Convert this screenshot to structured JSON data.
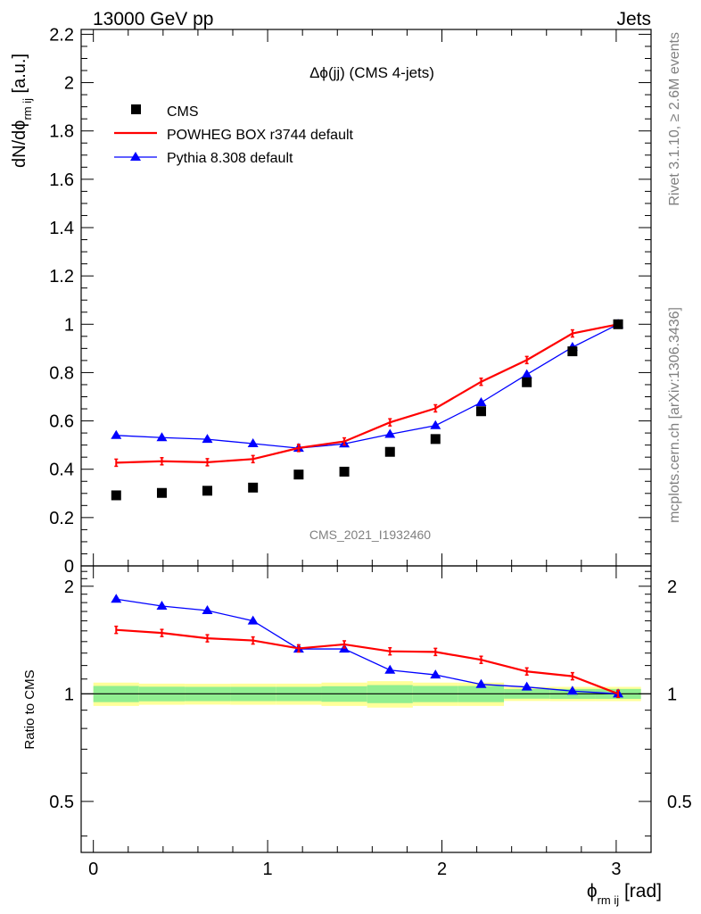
{
  "header": {
    "left": "13000 GeV pp",
    "right": "Jets"
  },
  "side": {
    "rivet": "Rivet 3.1.10, ≥ 2.6M events",
    "mcplots": "mcplots.cern.ch [arXiv:1306.3436]"
  },
  "chart_data": [
    {
      "type": "scatter",
      "title": "Δϕ(jj) (CMS 4-jets)",
      "ylabel_main": "dN/dϕ",
      "ylabel_sub": "rm ij",
      "ylabel_unit": " [a.u.]",
      "xlim": [
        -0.07,
        3.2
      ],
      "ylim": [
        0,
        2.22
      ],
      "yticks": [
        0,
        0.2,
        0.4,
        0.6,
        0.8,
        1,
        1.2,
        1.4,
        1.6,
        1.8,
        2,
        2.2
      ],
      "ytick_labels": [
        "0",
        "0.2",
        "0.4",
        "0.6",
        "0.8",
        "1",
        "1.2",
        "1.4",
        "1.6",
        "1.8",
        "2",
        "2.2"
      ],
      "watermark": "CMS_2021_I1932460",
      "legend": [
        "CMS",
        "POWHEG BOX r3744 default",
        "Pythia 8.308 default"
      ],
      "x": [
        0.131,
        0.393,
        0.654,
        0.916,
        1.178,
        1.44,
        1.702,
        1.963,
        2.225,
        2.487,
        2.749,
        3.011
      ],
      "series": [
        {
          "name": "CMS",
          "color": "#000000",
          "values": [
            0.292,
            0.302,
            0.311,
            0.324,
            0.378,
            0.39,
            0.472,
            0.525,
            0.64,
            0.76,
            0.888,
            1.0
          ]
        },
        {
          "name": "POWHEG BOX r3744 default",
          "color": "#ff0000",
          "values": [
            0.427,
            0.433,
            0.429,
            0.442,
            0.488,
            0.515,
            0.594,
            0.652,
            0.762,
            0.852,
            0.962,
            1.0
          ]
        },
        {
          "name": "Pythia 8.308 default",
          "color": "#0000ff",
          "values": [
            0.54,
            0.531,
            0.524,
            0.506,
            0.487,
            0.505,
            0.545,
            0.581,
            0.676,
            0.792,
            0.905,
            1.0
          ]
        }
      ]
    },
    {
      "type": "line",
      "ylabel": "Ratio to CMS",
      "xlabel_main": "ϕ",
      "xlabel_sub": "rm ij",
      "xlabel_unit": " [rad]",
      "xlim": [
        -0.07,
        3.2
      ],
      "ylim": [
        0.36,
        2.28
      ],
      "log_scale_y": true,
      "yticks": [
        0.5,
        1,
        2
      ],
      "ytick_labels": [
        "0.5",
        "1",
        "2"
      ],
      "xticks": [
        0,
        1,
        2,
        3
      ],
      "xtick_labels": [
        "0",
        "1",
        "2",
        "3"
      ],
      "x": [
        0.131,
        0.393,
        0.654,
        0.916,
        1.178,
        1.44,
        1.702,
        1.963,
        2.225,
        2.487,
        2.749,
        3.011
      ],
      "bands": {
        "edges": [
          0.0,
          0.262,
          0.524,
          0.785,
          1.047,
          1.309,
          1.571,
          1.833,
          2.094,
          2.356,
          2.618,
          2.88,
          3.142
        ],
        "inner": [
          0.052,
          0.047,
          0.046,
          0.046,
          0.046,
          0.05,
          0.058,
          0.052,
          0.052,
          0.031,
          0.032,
          0.032
        ],
        "outer": [
          0.075,
          0.068,
          0.067,
          0.068,
          0.068,
          0.075,
          0.085,
          0.075,
          0.075,
          0.045,
          0.046,
          0.046
        ],
        "inner_color": "#90ee90",
        "outer_color": "#ffff99"
      },
      "series": [
        {
          "name": "POWHEG BOX r3744 default",
          "color": "#ff0000",
          "values": [
            1.51,
            1.48,
            1.43,
            1.41,
            1.34,
            1.375,
            1.315,
            1.31,
            1.245,
            1.155,
            1.12,
            1.0
          ]
        },
        {
          "name": "Pythia 8.308 default",
          "color": "#0000ff",
          "values": [
            1.84,
            1.76,
            1.71,
            1.6,
            1.335,
            1.335,
            1.165,
            1.13,
            1.063,
            1.045,
            1.018,
            1.0
          ]
        }
      ]
    }
  ]
}
